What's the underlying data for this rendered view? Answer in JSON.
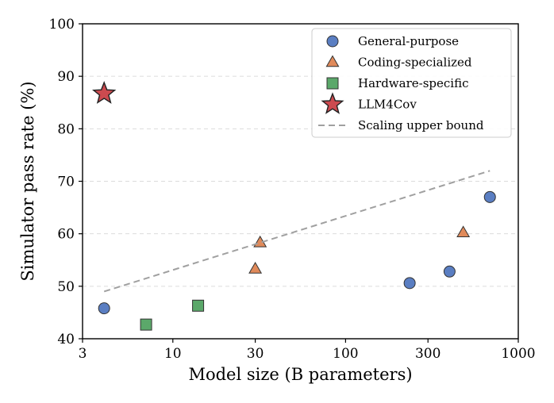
{
  "chart_data": {
    "type": "scatter",
    "xscale": "log",
    "xlim": [
      3,
      1000
    ],
    "ylim": [
      40,
      100
    ],
    "xlabel": "Model size (B parameters)",
    "ylabel": "Simulator pass rate (%)",
    "xticks": [
      3,
      10,
      30,
      100,
      300,
      1000
    ],
    "xtick_labels": [
      "3",
      "10",
      "30",
      "100",
      "300",
      "1000"
    ],
    "yticks": [
      40,
      50,
      60,
      70,
      80,
      90,
      100
    ],
    "ytick_labels": [
      "40",
      "50",
      "60",
      "70",
      "80",
      "90",
      "100"
    ],
    "grid": "horizontal dashed",
    "legend_position": "top-right",
    "series": [
      {
        "name": "General-purpose",
        "marker": "circle",
        "color": "#5a7ec2",
        "points": [
          [
            4,
            45.8
          ],
          [
            235,
            50.6
          ],
          [
            400,
            52.8
          ],
          [
            685,
            67.0
          ]
        ]
      },
      {
        "name": "Coding-specialized",
        "marker": "triangle",
        "color": "#e08a5a",
        "points": [
          [
            30,
            53.3
          ],
          [
            32,
            58.3
          ],
          [
            480,
            60.2
          ]
        ]
      },
      {
        "name": "Hardware-specific",
        "marker": "square",
        "color": "#5ba86a",
        "points": [
          [
            7,
            42.7
          ],
          [
            14,
            46.3
          ]
        ]
      },
      {
        "name": "LLM4Cov",
        "marker": "star",
        "color": "#cc4a4f",
        "points": [
          [
            4,
            86.7
          ]
        ]
      },
      {
        "name": "Scaling upper bound",
        "marker": "dashed-line",
        "color": "#a0a0a0",
        "points": [
          [
            4,
            49
          ],
          [
            685,
            72
          ]
        ]
      }
    ]
  }
}
